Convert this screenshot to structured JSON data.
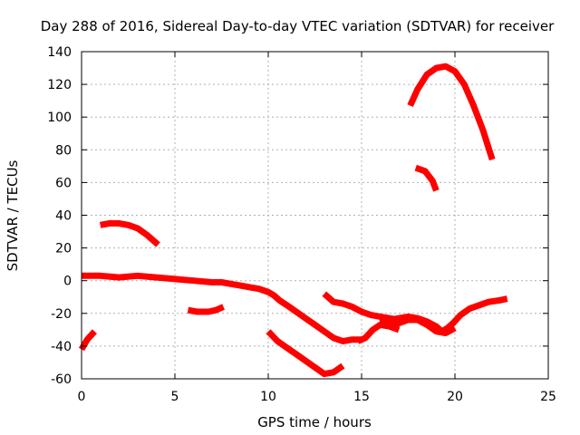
{
  "chart_data": {
    "type": "line",
    "title": "Day 288 of 2016, Sidereal Day-to-day VTEC variation (SDTVAR) for receiver",
    "xlabel": "GPS time / hours",
    "ylabel": "SDTVAR / TECUs",
    "xlim": [
      0,
      25
    ],
    "ylim": [
      -60,
      140
    ],
    "xticks": [
      0,
      5,
      10,
      15,
      20,
      25
    ],
    "yticks": [
      -60,
      -40,
      -20,
      0,
      20,
      40,
      60,
      80,
      100,
      120,
      140
    ],
    "grid": true,
    "series_color": "#ff0000",
    "series": [
      {
        "x": [
          0.0,
          1.0,
          2.0,
          3.0,
          4.0,
          5.0,
          6.0,
          7.0,
          7.5,
          8.0,
          8.5,
          9.0,
          9.5,
          10.0,
          10.3,
          10.6,
          11.0,
          11.5,
          12.0,
          12.5,
          13.0,
          13.5,
          14.0,
          14.5,
          15.0
        ],
        "y": [
          3,
          3,
          2,
          3,
          2,
          1,
          0,
          -1,
          -1,
          -2,
          -3,
          -4,
          -5,
          -7,
          -9,
          -12,
          -15,
          -19,
          -23,
          -27,
          -31,
          -35,
          -37,
          -36,
          -36
        ]
      },
      {
        "x": [
          0.0,
          0.3,
          0.7
        ],
        "y": [
          -42,
          -36,
          -31
        ]
      },
      {
        "x": [
          1.0,
          1.5,
          2.0,
          2.5,
          3.0,
          3.5,
          4.1
        ],
        "y": [
          34,
          35,
          35,
          34,
          32,
          28,
          22
        ]
      },
      {
        "x": [
          5.7,
          6.2,
          6.8,
          7.2,
          7.6
        ],
        "y": [
          -18,
          -19,
          -19,
          -18,
          -16
        ]
      },
      {
        "x": [
          10.0,
          10.5,
          11.0,
          11.5,
          12.0,
          12.5,
          13.0,
          13.5,
          14.0
        ],
        "y": [
          -31,
          -37,
          -41,
          -45,
          -49,
          -53,
          -57,
          -56,
          -52
        ]
      },
      {
        "x": [
          13.0,
          13.5,
          14.0,
          14.5,
          15.0,
          15.5,
          16.0,
          16.5,
          17.0
        ],
        "y": [
          -8,
          -13,
          -14,
          -16,
          -19,
          -21,
          -22,
          -23,
          -24
        ]
      },
      {
        "x": [
          14.8,
          15.2,
          15.6,
          16.0,
          16.5,
          17.0
        ],
        "y": [
          -37,
          -35,
          -30,
          -27,
          -28,
          -30
        ]
      },
      {
        "x": [
          16.0,
          16.5,
          17.0,
          17.5,
          18.0,
          18.5,
          19.0,
          19.3,
          19.6,
          19.9,
          20.3,
          20.8,
          21.3,
          21.8,
          22.4,
          22.8
        ],
        "y": [
          -26,
          -24,
          -23,
          -22,
          -23,
          -25,
          -28,
          -31,
          -29,
          -26,
          -21,
          -17,
          -15,
          -13,
          -12,
          -11
        ]
      },
      {
        "x": [
          16.5,
          17.0,
          17.5,
          18.0,
          18.5,
          19.0,
          19.5,
          20.0
        ],
        "y": [
          -27,
          -26,
          -24,
          -24,
          -27,
          -31,
          -32,
          -29
        ]
      },
      {
        "x": [
          17.6,
          18.0,
          18.5,
          19.0,
          19.5,
          20.0,
          20.5,
          21.0,
          21.5,
          22.0
        ],
        "y": [
          107,
          117,
          126,
          130,
          131,
          128,
          120,
          107,
          92,
          74
        ]
      },
      {
        "x": [
          17.9,
          18.4,
          18.8,
          19.0
        ],
        "y": [
          69,
          67,
          61,
          55
        ]
      }
    ]
  }
}
